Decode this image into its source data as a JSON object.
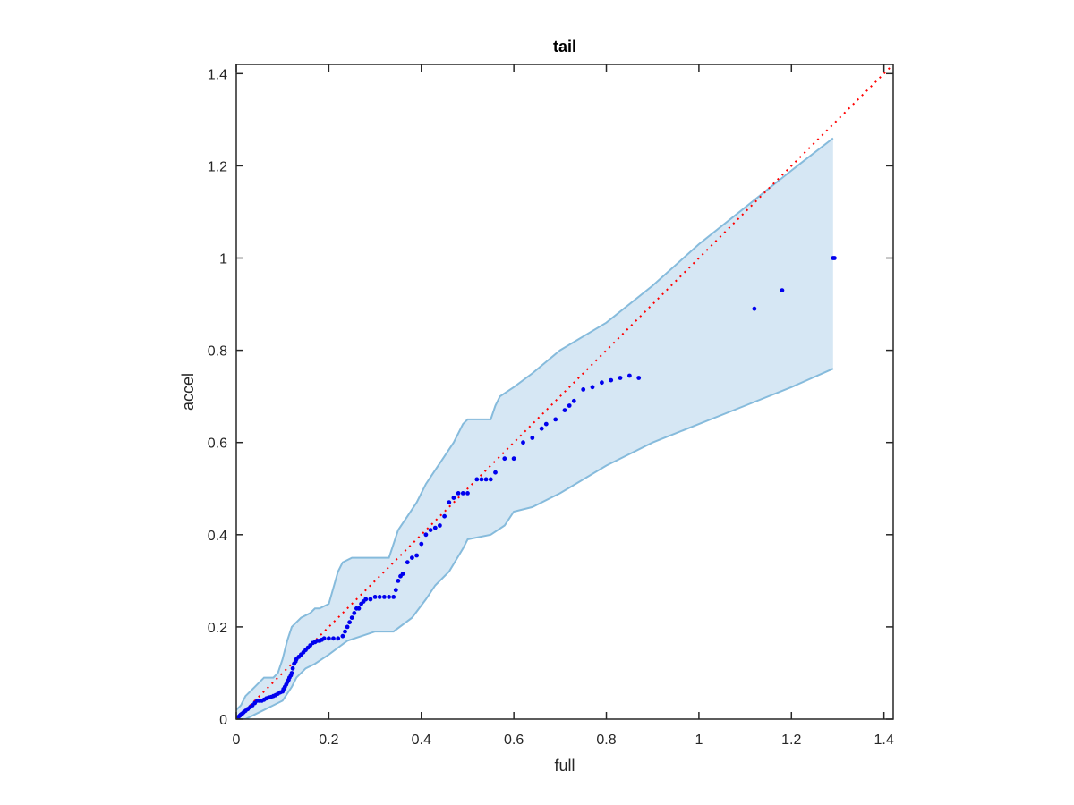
{
  "chart_data": {
    "type": "scatter",
    "title": "tail",
    "xlabel": "full",
    "ylabel": "accel",
    "xlim": [
      0,
      1.42
    ],
    "ylim": [
      0,
      1.42
    ],
    "xticks": [
      0,
      0.2,
      0.4,
      0.6,
      0.8,
      1,
      1.2,
      1.4
    ],
    "yticks": [
      0,
      0.2,
      0.4,
      0.6,
      0.8,
      1,
      1.2,
      1.4
    ],
    "xtick_labels": [
      "0",
      "0.2",
      "0.4",
      "0.6",
      "0.8",
      "1",
      "1.2",
      "1.4"
    ],
    "ytick_labels": [
      "0",
      "0.2",
      "0.4",
      "0.6",
      "0.8",
      "1",
      "1.2",
      "1.4"
    ],
    "grid": false,
    "colors": {
      "points": "#0000ee",
      "band_fill": "#d6e7f4",
      "band_edge": "#86bbdc",
      "reference_line": "#ff0000",
      "axes": "#262626"
    },
    "reference_line": {
      "style": "dotted",
      "from": [
        0,
        0
      ],
      "to": [
        1.42,
        1.42
      ]
    },
    "band_upper": [
      [
        0,
        0.02
      ],
      [
        0.01,
        0.03
      ],
      [
        0.02,
        0.05
      ],
      [
        0.03,
        0.06
      ],
      [
        0.04,
        0.07
      ],
      [
        0.05,
        0.08
      ],
      [
        0.06,
        0.09
      ],
      [
        0.08,
        0.09
      ],
      [
        0.09,
        0.1
      ],
      [
        0.1,
        0.13
      ],
      [
        0.11,
        0.17
      ],
      [
        0.12,
        0.2
      ],
      [
        0.13,
        0.21
      ],
      [
        0.14,
        0.22
      ],
      [
        0.16,
        0.23
      ],
      [
        0.17,
        0.24
      ],
      [
        0.18,
        0.24
      ],
      [
        0.2,
        0.25
      ],
      [
        0.22,
        0.32
      ],
      [
        0.23,
        0.34
      ],
      [
        0.25,
        0.35
      ],
      [
        0.33,
        0.35
      ],
      [
        0.35,
        0.41
      ],
      [
        0.37,
        0.44
      ],
      [
        0.39,
        0.47
      ],
      [
        0.41,
        0.51
      ],
      [
        0.43,
        0.54
      ],
      [
        0.45,
        0.57
      ],
      [
        0.47,
        0.6
      ],
      [
        0.48,
        0.62
      ],
      [
        0.49,
        0.64
      ],
      [
        0.5,
        0.65
      ],
      [
        0.55,
        0.65
      ],
      [
        0.56,
        0.68
      ],
      [
        0.57,
        0.7
      ],
      [
        0.6,
        0.72
      ],
      [
        0.64,
        0.75
      ],
      [
        0.7,
        0.8
      ],
      [
        0.8,
        0.86
      ],
      [
        0.9,
        0.94
      ],
      [
        1.0,
        1.03
      ],
      [
        1.1,
        1.11
      ],
      [
        1.2,
        1.19
      ],
      [
        1.29,
        1.26
      ]
    ],
    "band_lower": [
      [
        0,
        0
      ],
      [
        0.02,
        0.0
      ],
      [
        0.04,
        0.01
      ],
      [
        0.06,
        0.02
      ],
      [
        0.08,
        0.03
      ],
      [
        0.1,
        0.04
      ],
      [
        0.12,
        0.07
      ],
      [
        0.13,
        0.09
      ],
      [
        0.15,
        0.11
      ],
      [
        0.17,
        0.12
      ],
      [
        0.2,
        0.14
      ],
      [
        0.24,
        0.17
      ],
      [
        0.3,
        0.19
      ],
      [
        0.34,
        0.19
      ],
      [
        0.38,
        0.22
      ],
      [
        0.41,
        0.26
      ],
      [
        0.43,
        0.29
      ],
      [
        0.46,
        0.32
      ],
      [
        0.49,
        0.37
      ],
      [
        0.5,
        0.39
      ],
      [
        0.55,
        0.4
      ],
      [
        0.58,
        0.42
      ],
      [
        0.6,
        0.45
      ],
      [
        0.64,
        0.46
      ],
      [
        0.7,
        0.49
      ],
      [
        0.8,
        0.55
      ],
      [
        0.9,
        0.6
      ],
      [
        1.0,
        0.64
      ],
      [
        1.1,
        0.68
      ],
      [
        1.2,
        0.72
      ],
      [
        1.29,
        0.76
      ]
    ],
    "series": [
      {
        "points": [
          [
            0.002,
            0.002
          ],
          [
            0.005,
            0.005
          ],
          [
            0.008,
            0.008
          ],
          [
            0.01,
            0.01
          ],
          [
            0.013,
            0.012
          ],
          [
            0.016,
            0.015
          ],
          [
            0.02,
            0.018
          ],
          [
            0.025,
            0.022
          ],
          [
            0.03,
            0.026
          ],
          [
            0.035,
            0.03
          ],
          [
            0.04,
            0.035
          ],
          [
            0.045,
            0.04
          ],
          [
            0.05,
            0.04
          ],
          [
            0.055,
            0.04
          ],
          [
            0.06,
            0.042
          ],
          [
            0.065,
            0.045
          ],
          [
            0.07,
            0.047
          ],
          [
            0.075,
            0.048
          ],
          [
            0.08,
            0.05
          ],
          [
            0.085,
            0.052
          ],
          [
            0.09,
            0.055
          ],
          [
            0.095,
            0.058
          ],
          [
            0.1,
            0.06
          ],
          [
            0.102,
            0.065
          ],
          [
            0.105,
            0.07
          ],
          [
            0.108,
            0.075
          ],
          [
            0.11,
            0.08
          ],
          [
            0.113,
            0.085
          ],
          [
            0.115,
            0.09
          ],
          [
            0.118,
            0.095
          ],
          [
            0.12,
            0.1
          ],
          [
            0.122,
            0.11
          ],
          [
            0.125,
            0.12
          ],
          [
            0.128,
            0.125
          ],
          [
            0.13,
            0.13
          ],
          [
            0.135,
            0.135
          ],
          [
            0.14,
            0.14
          ],
          [
            0.145,
            0.145
          ],
          [
            0.15,
            0.15
          ],
          [
            0.155,
            0.155
          ],
          [
            0.16,
            0.16
          ],
          [
            0.165,
            0.165
          ],
          [
            0.17,
            0.167
          ],
          [
            0.175,
            0.17
          ],
          [
            0.18,
            0.17
          ],
          [
            0.185,
            0.172
          ],
          [
            0.19,
            0.175
          ],
          [
            0.2,
            0.175
          ],
          [
            0.21,
            0.175
          ],
          [
            0.22,
            0.175
          ],
          [
            0.23,
            0.18
          ],
          [
            0.235,
            0.19
          ],
          [
            0.24,
            0.2
          ],
          [
            0.245,
            0.21
          ],
          [
            0.25,
            0.22
          ],
          [
            0.255,
            0.23
          ],
          [
            0.26,
            0.24
          ],
          [
            0.265,
            0.24
          ],
          [
            0.27,
            0.25
          ],
          [
            0.275,
            0.255
          ],
          [
            0.28,
            0.26
          ],
          [
            0.29,
            0.26
          ],
          [
            0.3,
            0.265
          ],
          [
            0.31,
            0.265
          ],
          [
            0.32,
            0.265
          ],
          [
            0.33,
            0.265
          ],
          [
            0.34,
            0.265
          ],
          [
            0.345,
            0.28
          ],
          [
            0.35,
            0.3
          ],
          [
            0.355,
            0.31
          ],
          [
            0.36,
            0.315
          ],
          [
            0.37,
            0.34
          ],
          [
            0.38,
            0.35
          ],
          [
            0.39,
            0.355
          ],
          [
            0.4,
            0.38
          ],
          [
            0.41,
            0.4
          ],
          [
            0.42,
            0.41
          ],
          [
            0.43,
            0.415
          ],
          [
            0.44,
            0.42
          ],
          [
            0.45,
            0.44
          ],
          [
            0.46,
            0.47
          ],
          [
            0.47,
            0.48
          ],
          [
            0.48,
            0.49
          ],
          [
            0.49,
            0.49
          ],
          [
            0.5,
            0.49
          ],
          [
            0.52,
            0.52
          ],
          [
            0.53,
            0.52
          ],
          [
            0.54,
            0.52
          ],
          [
            0.55,
            0.52
          ],
          [
            0.56,
            0.535
          ],
          [
            0.58,
            0.565
          ],
          [
            0.6,
            0.565
          ],
          [
            0.62,
            0.6
          ],
          [
            0.64,
            0.61
          ],
          [
            0.66,
            0.63
          ],
          [
            0.67,
            0.64
          ],
          [
            0.69,
            0.65
          ],
          [
            0.71,
            0.67
          ],
          [
            0.72,
            0.68
          ],
          [
            0.73,
            0.69
          ],
          [
            0.75,
            0.715
          ],
          [
            0.77,
            0.72
          ],
          [
            0.79,
            0.73
          ],
          [
            0.81,
            0.735
          ],
          [
            0.83,
            0.74
          ],
          [
            0.85,
            0.745
          ],
          [
            0.87,
            0.74
          ],
          [
            1.12,
            0.89
          ],
          [
            1.18,
            0.93
          ],
          [
            1.29,
            1.0
          ],
          [
            1.293,
            1.0
          ]
        ]
      }
    ]
  }
}
